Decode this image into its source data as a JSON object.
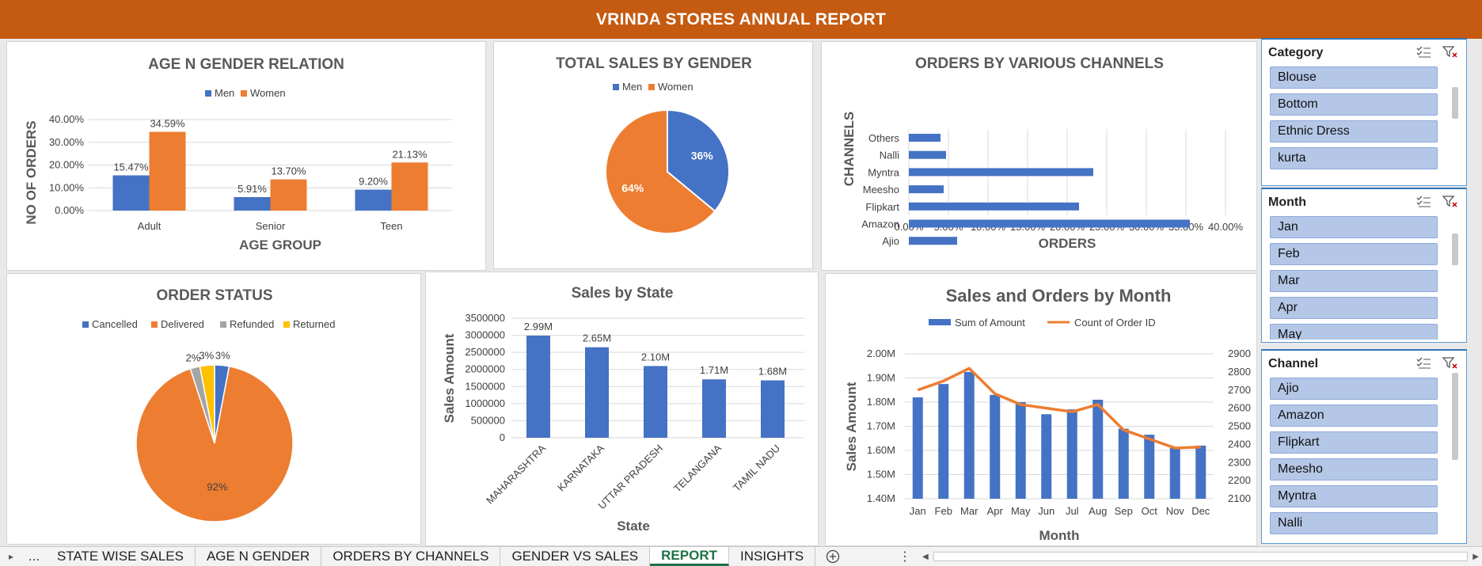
{
  "report_title": "VRINDA STORES ANNUAL REPORT",
  "colors": {
    "men": "#4472c4",
    "women": "#ed7d31",
    "refunded": "#a5a5a5",
    "returned": "#ffc000",
    "banner": "#c55a11",
    "slicer_item": "#b4c7e7"
  },
  "chart_data": [
    {
      "id": "age_gender",
      "type": "bar",
      "title": "AGE N GENDER RELATION",
      "xlabel": "AGE GROUP",
      "ylabel": "NO OF ORDERS",
      "legend": "top",
      "categories": [
        "Adult",
        "Senior",
        "Teen"
      ],
      "series": [
        {
          "name": "Men",
          "values": [
            15.47,
            5.91,
            9.2
          ],
          "labels": [
            "15.47%",
            "5.91%",
            "9.20%"
          ]
        },
        {
          "name": "Women",
          "values": [
            34.59,
            13.7,
            21.13
          ],
          "labels": [
            "34.59%",
            "13.70%",
            "21.13%"
          ]
        }
      ],
      "yticks": [
        "0.00%",
        "10.00%",
        "20.00%",
        "30.00%",
        "40.00%"
      ],
      "ylim": [
        0,
        40
      ]
    },
    {
      "id": "sales_gender",
      "type": "pie",
      "title": "TOTAL SALES BY GENDER",
      "legend": "top",
      "slices": [
        {
          "name": "Men",
          "value": 36,
          "label": "36%"
        },
        {
          "name": "Women",
          "value": 64,
          "label": "64%"
        }
      ]
    },
    {
      "id": "channels",
      "type": "bar",
      "orientation": "horizontal",
      "title": "ORDERS BY VARIOUS CHANNELS",
      "xlabel": "ORDERS",
      "ylabel": "CHANNELS",
      "categories": [
        "Others",
        "Nalli",
        "Myntra",
        "Meesho",
        "Flipkart",
        "Amazon",
        "Ajio"
      ],
      "values": [
        4.0,
        4.7,
        23.3,
        4.4,
        21.5,
        35.5,
        6.1
      ],
      "xticks": [
        "0.00%",
        "5.00%",
        "10.00%",
        "15.00%",
        "20.00%",
        "25.00%",
        "30.00%",
        "35.00%",
        "40.00%"
      ],
      "xlim": [
        0,
        40
      ]
    },
    {
      "id": "order_status",
      "type": "pie",
      "title": "ORDER STATUS",
      "legend": "top",
      "slices": [
        {
          "name": "Cancelled",
          "value": 3,
          "label": "3%"
        },
        {
          "name": "Delivered",
          "value": 92,
          "label": "92%"
        },
        {
          "name": "Refunded",
          "value": 2,
          "label": "2%"
        },
        {
          "name": "Returned",
          "value": 3,
          "label": "3%"
        }
      ]
    },
    {
      "id": "state_sales",
      "type": "bar",
      "title": "Sales by State",
      "xlabel": "State",
      "ylabel": "Sales Amount",
      "categories": [
        "MAHARASHTRA",
        "KARNATAKA",
        "UTTAR PRADESH",
        "TELANGANA",
        "TAMIL NADU"
      ],
      "values": [
        2990000,
        2650000,
        2100000,
        1710000,
        1680000
      ],
      "labels": [
        "2.99M",
        "2.65M",
        "2.10M",
        "1.71M",
        "1.68M"
      ],
      "yticks": [
        "0",
        "500000",
        "1000000",
        "1500000",
        "2000000",
        "2500000",
        "3000000",
        "3500000"
      ],
      "ylim": [
        0,
        3500000
      ]
    },
    {
      "id": "monthly",
      "type": "bar",
      "title": "Sales and Orders by Month",
      "xlabel": "Month",
      "ylabel": "Sales Amount",
      "legend": "top",
      "categories": [
        "Jan",
        "Feb",
        "Mar",
        "Apr",
        "May",
        "Jun",
        "Jul",
        "Aug",
        "Sep",
        "Oct",
        "Nov",
        "Dec"
      ],
      "series": [
        {
          "name": "Sum of Amount",
          "type": "bar",
          "axis": "left",
          "values": [
            1820000,
            1875000,
            1925000,
            1830000,
            1800000,
            1750000,
            1770000,
            1810000,
            1690000,
            1665000,
            1610000,
            1620000
          ]
        },
        {
          "name": "Count of Order ID",
          "type": "line",
          "axis": "right",
          "values": [
            2700,
            2750,
            2820,
            2680,
            2620,
            2600,
            2580,
            2620,
            2480,
            2430,
            2380,
            2385
          ]
        }
      ],
      "yticks": [
        "1.40M",
        "1.50M",
        "1.60M",
        "1.70M",
        "1.80M",
        "1.90M",
        "2.00M"
      ],
      "ylim": [
        1400000,
        2000000
      ],
      "y2ticks": [
        "2100",
        "2200",
        "2300",
        "2400",
        "2500",
        "2600",
        "2700",
        "2800",
        "2900"
      ],
      "y2lim": [
        2100,
        2900
      ]
    }
  ],
  "slicers": [
    {
      "name": "Category",
      "items": [
        "Blouse",
        "Bottom",
        "Ethnic Dress",
        "kurta"
      ]
    },
    {
      "name": "Month",
      "items": [
        "Jan",
        "Feb",
        "Mar",
        "Apr",
        "May"
      ]
    },
    {
      "name": "Channel",
      "items": [
        "Ajio",
        "Amazon",
        "Flipkart",
        "Meesho",
        "Myntra",
        "Nalli"
      ]
    }
  ],
  "sheet_tabs": {
    "more": "...",
    "tabs": [
      "STATE WISE SALES",
      "AGE N GENDER",
      "ORDERS BY CHANNELS",
      "GENDER VS SALES",
      "REPORT",
      "INSIGHTS"
    ],
    "active": "REPORT"
  }
}
